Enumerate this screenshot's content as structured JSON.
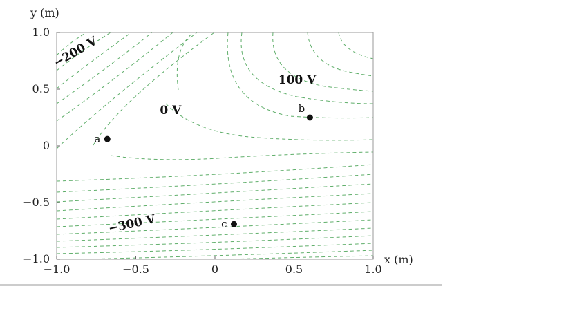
{
  "chart_data": {
    "type": "contour",
    "xlabel": "x (m)",
    "ylabel": "y (m)",
    "xlim": [
      -1.0,
      1.0
    ],
    "ylim": [
      -1.0,
      1.0
    ],
    "x_ticks": [
      "−1.0",
      "−0.5",
      "0",
      "0.5",
      "1.0"
    ],
    "x_tick_values": [
      -1.0,
      -0.5,
      0,
      0.5,
      1.0
    ],
    "y_ticks": [
      "−1.0",
      "−0.5",
      "0",
      "0.5",
      "1.0"
    ],
    "y_tick_values": [
      -1.0,
      -0.5,
      0,
      0.5,
      1.0
    ],
    "contour_color": "#5fae6a",
    "contour_labels": [
      {
        "text": "−200 V",
        "x": -0.87,
        "y": 0.8,
        "angle": -30
      },
      {
        "text": "0 V",
        "x": -0.28,
        "y": 0.28,
        "angle": 0
      },
      {
        "text": "100 V",
        "x": 0.52,
        "y": 0.55,
        "angle": 0
      },
      {
        "text": "−300 V",
        "x": -0.52,
        "y": -0.72,
        "angle": -12
      }
    ],
    "points": [
      {
        "label": "a",
        "x": -0.68,
        "y": 0.06
      },
      {
        "label": "b",
        "x": 0.6,
        "y": 0.25
      },
      {
        "label": "c",
        "x": 0.12,
        "y": -0.69
      }
    ]
  }
}
